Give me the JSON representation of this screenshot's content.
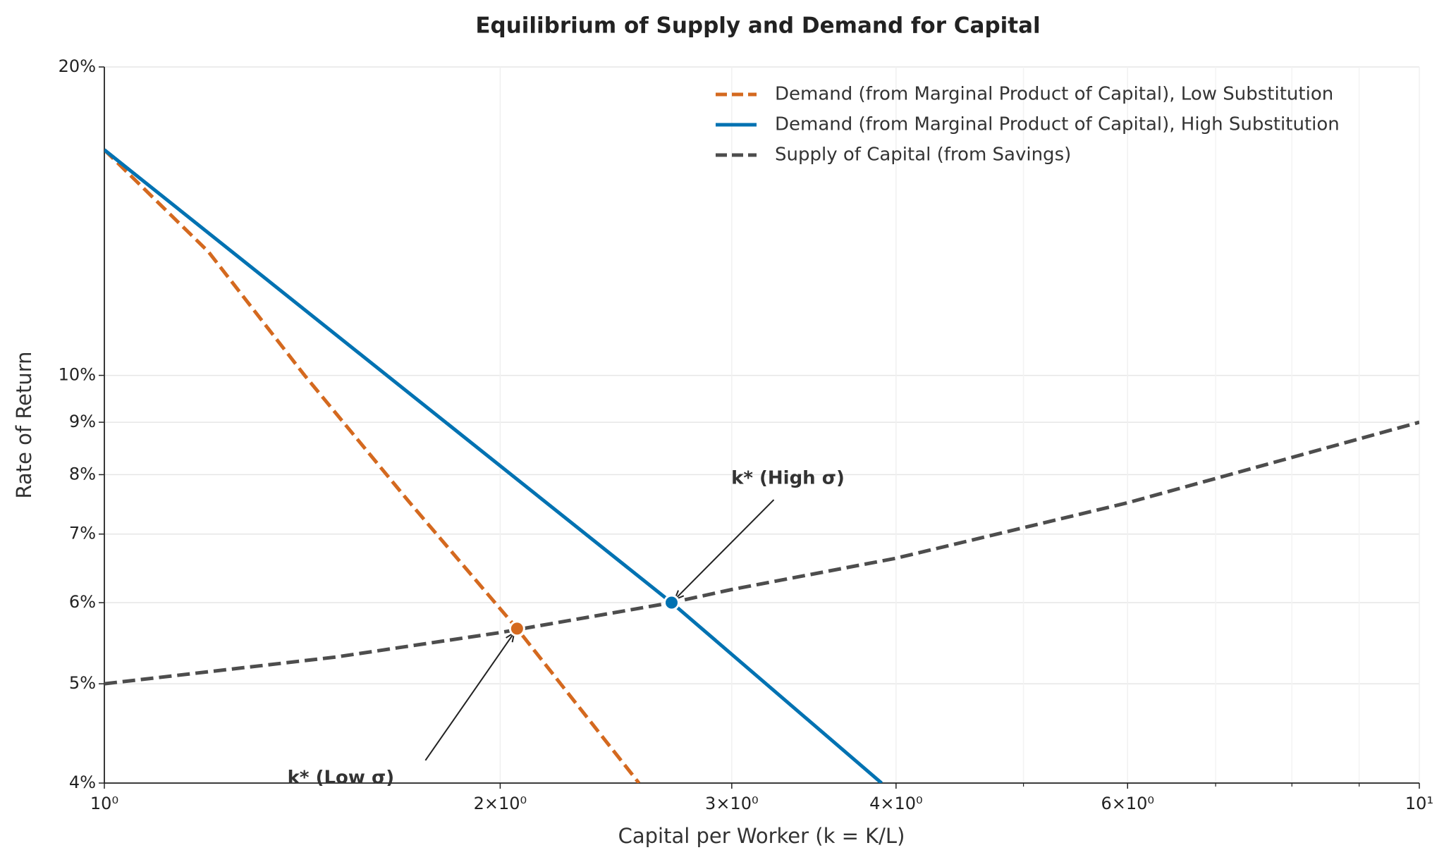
{
  "chart_data": {
    "type": "line",
    "title": "Equilibrium of Supply and Demand for Capital",
    "x_label": "Capital per Worker (k = K/L)",
    "y_label": "Rate of Return",
    "log_x": true,
    "log_y": true,
    "grid": true,
    "legend": "upper right",
    "xlim": [
      1,
      10
    ],
    "ylim": [
      4,
      20
    ],
    "xticks": [
      {
        "value": 1,
        "label": "10⁰"
      },
      {
        "value": 2,
        "label": "2×10⁰"
      },
      {
        "value": 3,
        "label": "3×10⁰"
      },
      {
        "value": 4,
        "label": "4×10⁰"
      },
      {
        "value": 6,
        "label": "6×10⁰"
      },
      {
        "value": 10,
        "label": "10¹"
      }
    ],
    "x_minor_ticks": [
      5,
      7,
      8,
      9
    ],
    "yticks": [
      {
        "value": 4,
        "label": "4%"
      },
      {
        "value": 5,
        "label": "5%"
      },
      {
        "value": 6,
        "label": "6%"
      },
      {
        "value": 7,
        "label": "7%"
      },
      {
        "value": 8,
        "label": "8%"
      },
      {
        "value": 9,
        "label": "9%"
      },
      {
        "value": 10,
        "label": "10%"
      },
      {
        "value": 20,
        "label": "20%"
      }
    ],
    "series": [
      {
        "name": "Demand (from Marginal Product of Capital), Low Substitution",
        "color": "#d4691f",
        "linestyle": "dashed",
        "x": [
          1,
          1.2,
          1.42,
          1.7,
          2.06,
          2.55
        ],
        "values": [
          16.6,
          13.2,
          10,
          7.56,
          5.66,
          4.0
        ]
      },
      {
        "name": "Demand (from Marginal Product of Capital), High Substitution",
        "color": "#0072b2",
        "linestyle": "solid",
        "x": [
          1,
          2.7,
          3.9
        ],
        "values": [
          16.6,
          6.0,
          4.0
        ]
      },
      {
        "name": "Supply of Capital (from Savings)",
        "color": "#4d4d4d",
        "linestyle": "dashed",
        "x": [
          1,
          1.5,
          2,
          2.7,
          3,
          4,
          6,
          10
        ],
        "values": [
          5.0,
          5.31,
          5.61,
          6.0,
          6.18,
          6.63,
          7.51,
          9.0
        ]
      }
    ],
    "equilibria": [
      {
        "label": "k* (Low σ)",
        "x": 2.06,
        "value": 5.66,
        "color": "#d4691f"
      },
      {
        "label": "k* (High σ)",
        "x": 2.7,
        "value": 6.0,
        "color": "#0072b2"
      }
    ]
  }
}
